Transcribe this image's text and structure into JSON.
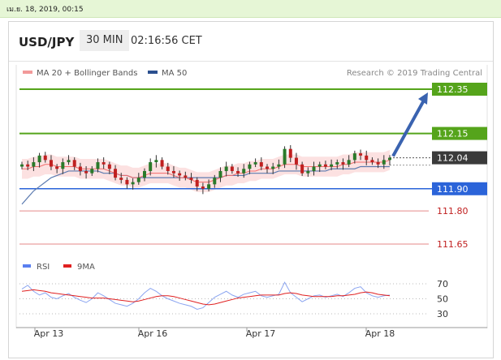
{
  "topbar": {
    "datetime": "เม.ย. 18, 2019, 00:15"
  },
  "header": {
    "pair": "USD/JPY",
    "timeframe": "30 MIN",
    "time": "02:16:56 CET"
  },
  "colors": {
    "resistance": "#55a41b",
    "support": "#2b64d9",
    "minor": "#e58a8a",
    "candle_up": "#2a7a2a",
    "candle_down": "#c02020",
    "bollinger": "#fbd7d7",
    "ma50": "#5c7bb0",
    "ma20": "#f26c6c",
    "rsi": "#8aa4f0",
    "rsi_ma": "#e02020",
    "arrow": "#3a63b0"
  },
  "legend": {
    "ma20": "MA 20 + Bollinger Bands",
    "ma50": "MA 50",
    "credit": "Research © 2019 Trading Central"
  },
  "rsi_legend": {
    "rsi": "RSI",
    "ma": "9MA"
  },
  "chart_data": {
    "type": "candlestick",
    "y_range": [
      111.6,
      112.4
    ],
    "levels": [
      {
        "label": "112.35",
        "value": 112.35,
        "kind": "resistance"
      },
      {
        "label": "112.15",
        "value": 112.15,
        "kind": "resistance"
      },
      {
        "label": "112.04",
        "value": 112.04,
        "kind": "current"
      },
      {
        "label": "111.90",
        "value": 111.9,
        "kind": "support"
      },
      {
        "label": "111.80",
        "value": 111.8,
        "kind": "minor"
      },
      {
        "label": "111.65",
        "value": 111.65,
        "kind": "minor"
      }
    ],
    "x_labels": [
      "Apr 13",
      "Apr 16",
      "Apr 17",
      "Apr 18"
    ],
    "close": [
      112.01,
      112.0,
      112.02,
      112.05,
      112.03,
      112.0,
      111.99,
      112.02,
      112.03,
      112.0,
      111.98,
      111.97,
      111.99,
      112.02,
      112.01,
      111.99,
      111.95,
      111.94,
      111.92,
      111.93,
      111.95,
      111.98,
      112.02,
      112.03,
      112.0,
      111.98,
      111.97,
      111.96,
      111.95,
      111.94,
      111.91,
      111.9,
      111.92,
      111.95,
      111.98,
      112.0,
      111.98,
      111.97,
      111.99,
      112.01,
      112.02,
      112.0,
      111.99,
      112.0,
      112.01,
      112.08,
      112.04,
      112.01,
      111.97,
      111.98,
      112.0,
      112.01,
      112.0,
      112.01,
      112.02,
      112.01,
      112.03,
      112.06,
      112.05,
      112.03,
      112.02,
      112.01,
      112.03,
      112.04
    ],
    "ma20": [
      111.99,
      111.99,
      112.0,
      112.0,
      112.01,
      112.01,
      112.0,
      112.0,
      112.0,
      112.0,
      111.99,
      111.99,
      111.99,
      111.99,
      111.99,
      111.98,
      111.97,
      111.96,
      111.96,
      111.95,
      111.95,
      111.96,
      111.97,
      111.97,
      111.97,
      111.97,
      111.96,
      111.95,
      111.95,
      111.94,
      111.93,
      111.93,
      111.93,
      111.94,
      111.95,
      111.96,
      111.96,
      111.97,
      111.97,
      111.98,
      111.98,
      111.99,
      111.99,
      111.99,
      112.0,
      112.01,
      112.01,
      112.01,
      112.0,
      112.0,
      112.0,
      112.0,
      112.0,
      112.0,
      112.0,
      112.01,
      112.01,
      112.02,
      112.02,
      112.02,
      112.02,
      112.02,
      112.02,
      112.03
    ],
    "ma50": [
      111.83,
      111.86,
      111.89,
      111.91,
      111.93,
      111.95,
      111.96,
      111.97,
      111.98,
      111.98,
      111.98,
      111.98,
      111.98,
      111.98,
      111.97,
      111.97,
      111.97,
      111.96,
      111.96,
      111.95,
      111.95,
      111.95,
      111.95,
      111.95,
      111.95,
      111.95,
      111.95,
      111.95,
      111.95,
      111.95,
      111.95,
      111.95,
      111.95,
      111.95,
      111.95,
      111.96,
      111.96,
      111.96,
      111.96,
      111.97,
      111.97,
      111.97,
      111.97,
      111.97,
      111.98,
      111.98,
      111.98,
      111.98,
      111.98,
      111.98,
      111.98,
      111.98,
      111.98,
      111.99,
      111.99,
      111.99,
      111.99,
      111.99,
      112.0,
      112.0,
      112.0,
      112.0,
      112.0,
      112.0
    ],
    "projection": {
      "from": 112.04,
      "to": 112.35
    },
    "rsi": {
      "ticks": [
        70,
        50,
        30
      ],
      "y_range": [
        20,
        80
      ],
      "rsi": [
        63,
        68,
        60,
        55,
        58,
        52,
        50,
        54,
        57,
        52,
        48,
        45,
        50,
        58,
        54,
        49,
        44,
        42,
        40,
        44,
        50,
        58,
        64,
        60,
        54,
        50,
        47,
        44,
        42,
        40,
        36,
        38,
        45,
        52,
        56,
        60,
        55,
        52,
        56,
        58,
        60,
        54,
        52,
        54,
        56,
        72,
        58,
        52,
        46,
        50,
        54,
        55,
        52,
        54,
        56,
        53,
        58,
        64,
        66,
        58,
        54,
        52,
        54,
        55
      ],
      "ma": [
        60,
        61,
        62,
        61,
        60,
        58,
        57,
        56,
        55,
        54,
        53,
        52,
        51,
        51,
        51,
        50,
        49,
        48,
        47,
        46,
        47,
        49,
        51,
        53,
        54,
        54,
        53,
        51,
        49,
        47,
        45,
        43,
        42,
        43,
        45,
        47,
        49,
        51,
        52,
        53,
        54,
        55,
        55,
        55,
        55,
        57,
        58,
        57,
        55,
        54,
        53,
        53,
        53,
        53,
        54,
        54,
        55,
        56,
        58,
        59,
        58,
        56,
        55,
        54
      ]
    }
  }
}
